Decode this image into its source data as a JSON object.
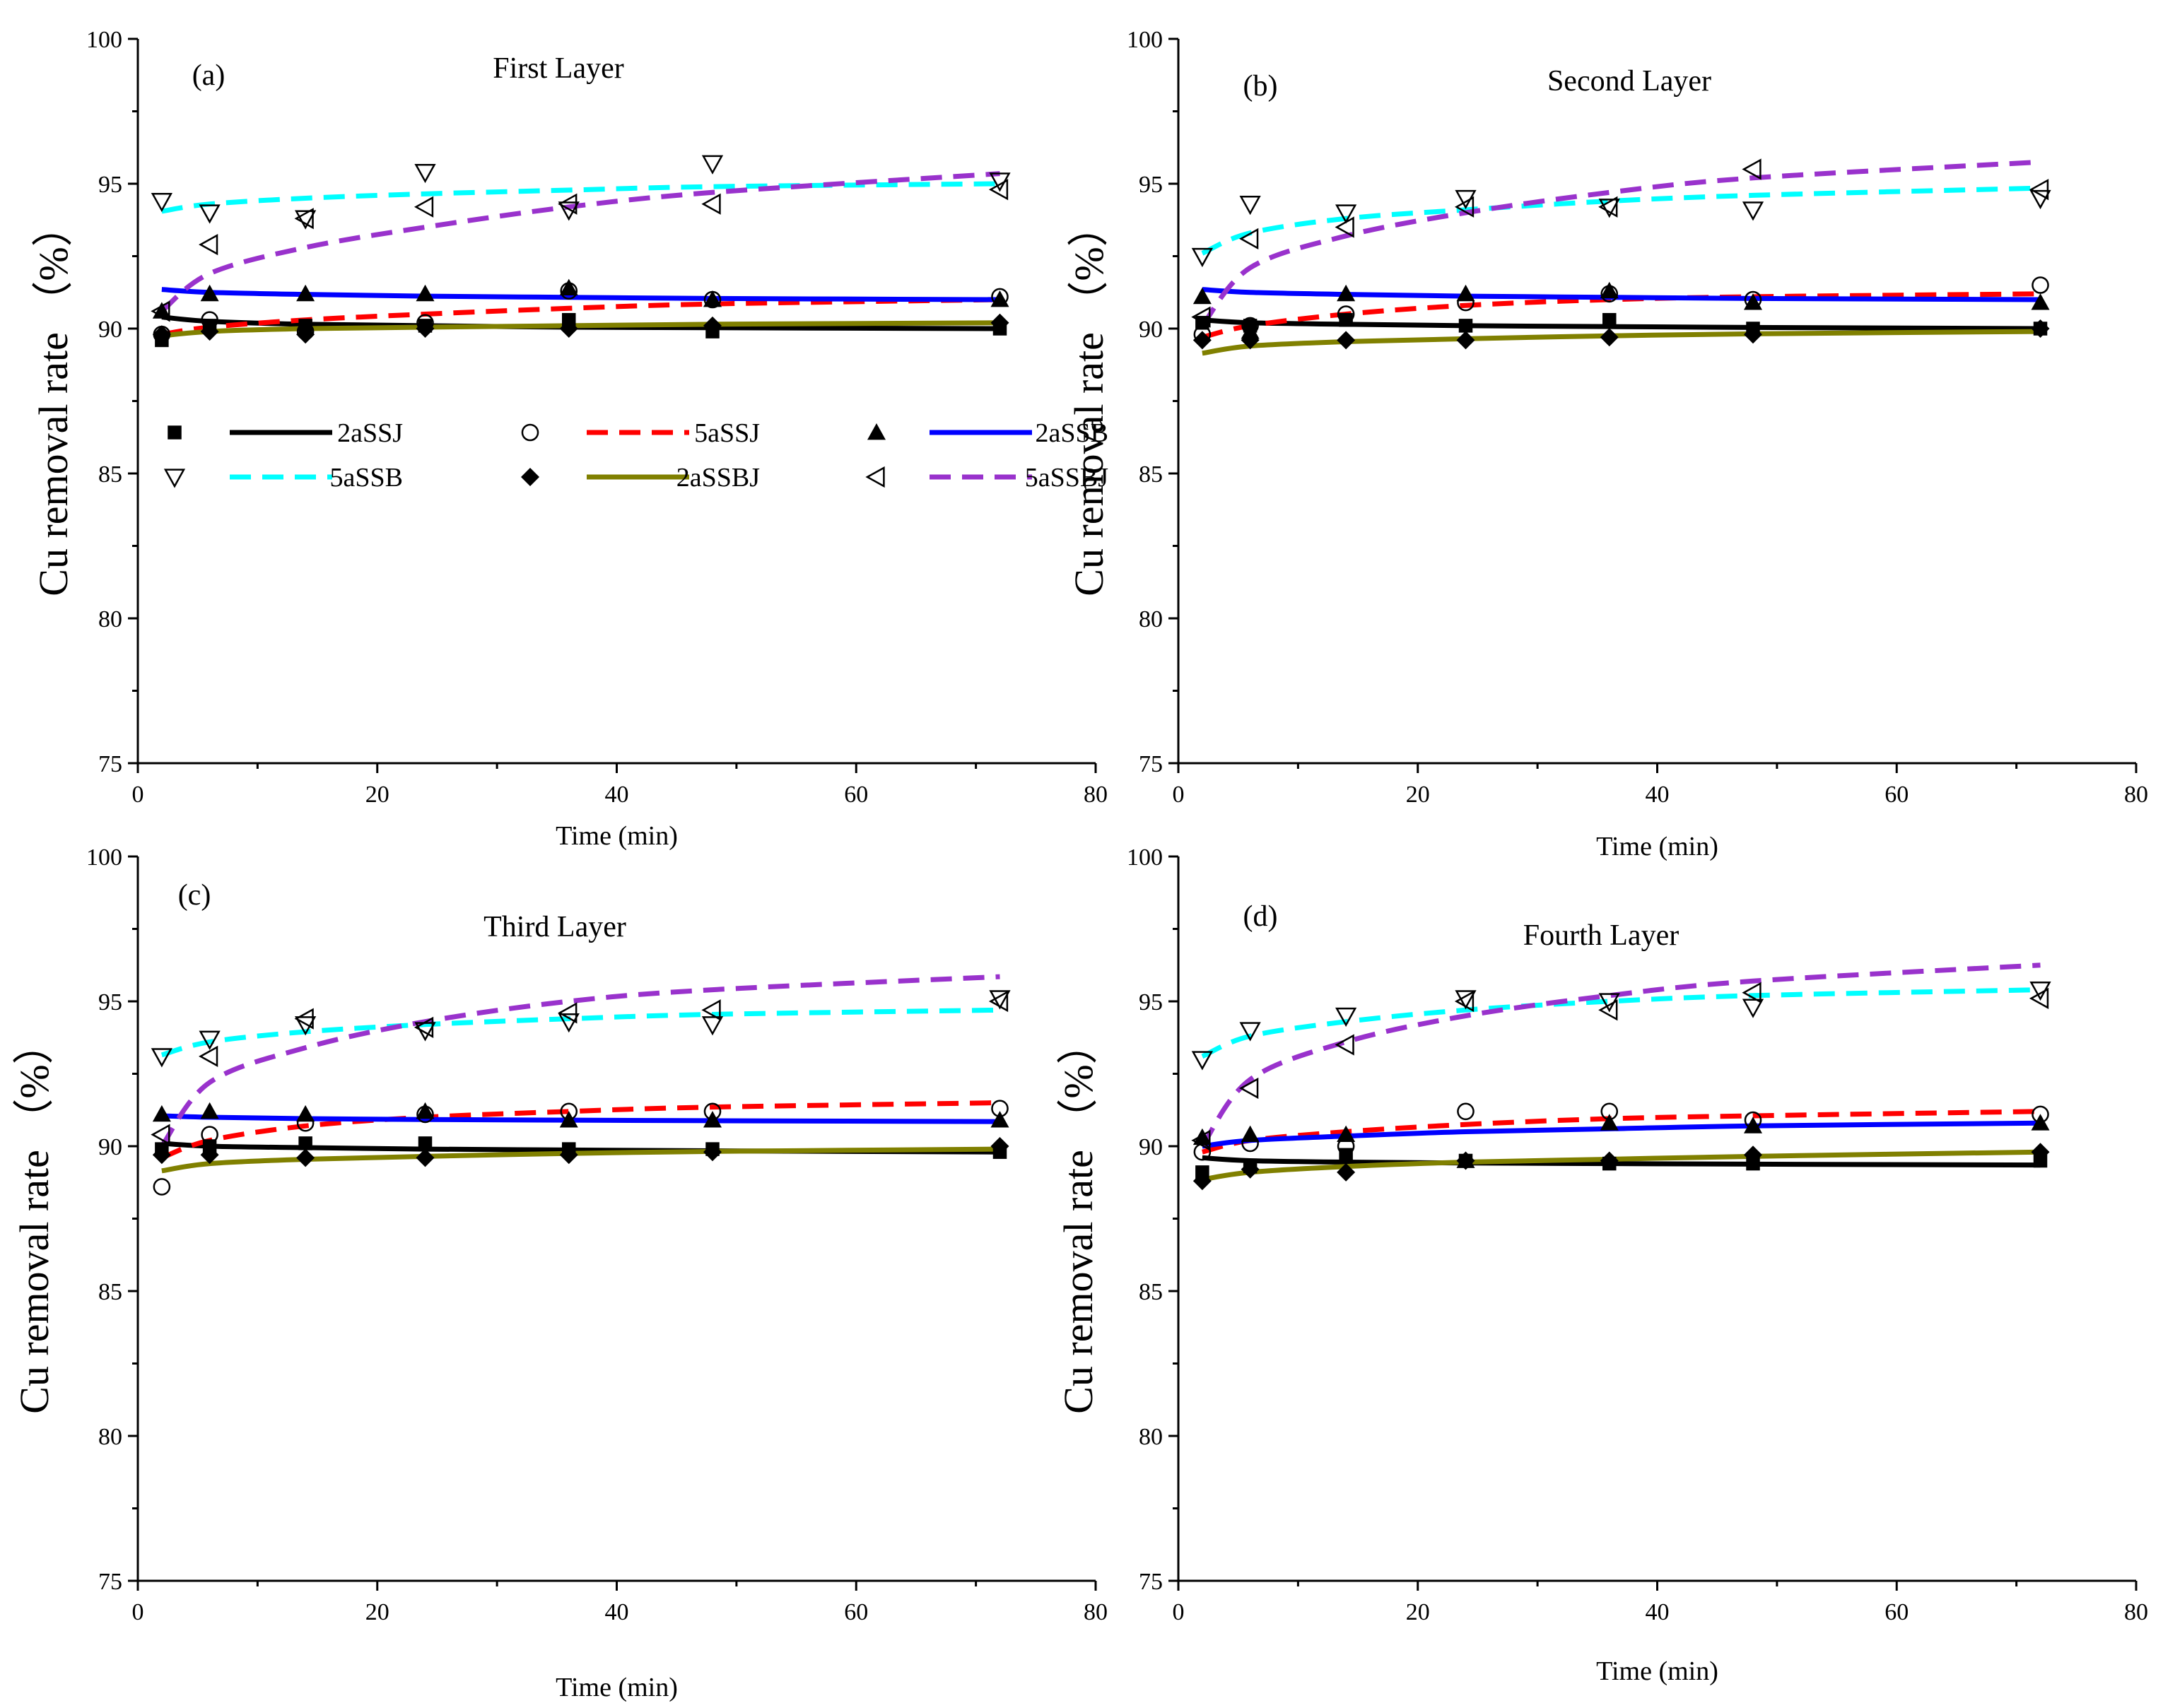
{
  "legend": {
    "entries": [
      {
        "label": "2aSSJ",
        "marker": "square",
        "color": "#000000",
        "dash": "solid"
      },
      {
        "label": "5aSSJ",
        "marker": "circle-open",
        "color": "#ff0000",
        "dash": "dashed"
      },
      {
        "label": "2aSSB",
        "marker": "triangle-up",
        "color": "#0000ff",
        "dash": "solid"
      },
      {
        "label": "5aSSB",
        "marker": "triangle-down-open",
        "color": "#00ffff",
        "dash": "dashed"
      },
      {
        "label": "2aSSBJ",
        "marker": "diamond",
        "color": "#808000",
        "dash": "solid"
      },
      {
        "label": "5aSSBJ",
        "marker": "triangle-left-open",
        "color": "#9932cc",
        "dash": "dashed"
      }
    ]
  },
  "chart_data": [
    {
      "type": "scatter",
      "panel": "(a)",
      "title": "First Layer",
      "xlabel": "Time (min)",
      "ylabel": "Cu removal rate （%）",
      "xlim": [
        0,
        80
      ],
      "ylim": [
        75,
        100
      ],
      "xticks": [
        0,
        20,
        40,
        60,
        80
      ],
      "yticks": [
        75,
        80,
        85,
        90,
        95,
        100
      ],
      "x": [
        2,
        6,
        14,
        24,
        36,
        48,
        72
      ],
      "series": [
        {
          "name": "2aSSJ",
          "values": [
            89.6,
            90.1,
            90.1,
            90.1,
            90.3,
            89.9,
            90.0
          ],
          "fit": [
            90.4,
            90.25,
            90.15,
            90.1,
            90.05,
            90.03,
            90.0
          ]
        },
        {
          "name": "5aSSJ",
          "values": [
            89.8,
            90.3,
            89.9,
            90.2,
            91.3,
            91.0,
            91.1
          ],
          "fit": [
            89.8,
            90.05,
            90.3,
            90.5,
            90.7,
            90.85,
            91.0
          ]
        },
        {
          "name": "2aSSB",
          "values": [
            90.6,
            91.2,
            91.2,
            91.2,
            91.4,
            91.0,
            91.0
          ],
          "fit": [
            91.35,
            91.25,
            91.18,
            91.12,
            91.08,
            91.04,
            91.0
          ]
        },
        {
          "name": "5aSSB",
          "values": [
            94.4,
            94.0,
            93.8,
            95.4,
            94.1,
            95.7,
            95.1
          ],
          "fit": [
            94.05,
            94.3,
            94.5,
            94.65,
            94.78,
            94.9,
            95.0
          ]
        },
        {
          "name": "2aSSBJ",
          "values": [
            89.8,
            89.9,
            89.8,
            90.0,
            90.0,
            90.1,
            90.2
          ],
          "fit": [
            89.75,
            89.9,
            90.0,
            90.05,
            90.1,
            90.15,
            90.2
          ]
        },
        {
          "name": "5aSSBJ",
          "values": [
            90.6,
            92.9,
            93.8,
            94.2,
            94.3,
            94.3,
            94.8
          ],
          "fit": [
            90.6,
            91.9,
            92.8,
            93.5,
            94.2,
            94.7,
            95.35
          ]
        }
      ]
    },
    {
      "type": "scatter",
      "panel": "(b)",
      "title": "Second Layer",
      "xlabel": "Time (min)",
      "ylabel": "Cu removal rate （%）",
      "xlim": [
        0,
        80
      ],
      "ylim": [
        75,
        100
      ],
      "xticks": [
        0,
        20,
        40,
        60,
        80
      ],
      "yticks": [
        75,
        80,
        85,
        90,
        95,
        100
      ],
      "x": [
        2,
        6,
        14,
        24,
        36,
        48,
        72
      ],
      "series": [
        {
          "name": "2aSSJ",
          "values": [
            90.2,
            90.1,
            90.3,
            90.1,
            90.3,
            90.0,
            90.0
          ],
          "fit": [
            90.3,
            90.2,
            90.15,
            90.1,
            90.07,
            90.04,
            90.0
          ]
        },
        {
          "name": "5aSSJ",
          "values": [
            89.8,
            90.1,
            90.5,
            90.9,
            91.2,
            91.0,
            91.5
          ],
          "fit": [
            89.7,
            90.1,
            90.5,
            90.8,
            91.0,
            91.1,
            91.2
          ]
        },
        {
          "name": "2aSSB",
          "values": [
            91.1,
            89.9,
            91.2,
            91.2,
            91.3,
            90.9,
            90.9
          ],
          "fit": [
            91.35,
            91.25,
            91.18,
            91.12,
            91.08,
            91.04,
            91.0
          ]
        },
        {
          "name": "5aSSB",
          "values": [
            92.5,
            94.3,
            94.0,
            94.5,
            94.2,
            94.1,
            94.5
          ],
          "fit": [
            92.6,
            93.3,
            93.8,
            94.1,
            94.4,
            94.6,
            94.85
          ]
        },
        {
          "name": "2aSSBJ",
          "values": [
            89.6,
            89.6,
            89.6,
            89.6,
            89.7,
            89.8,
            90.0
          ],
          "fit": [
            89.15,
            89.4,
            89.55,
            89.65,
            89.75,
            89.82,
            89.9
          ]
        },
        {
          "name": "5aSSBJ",
          "values": [
            90.4,
            93.1,
            93.5,
            94.2,
            94.2,
            95.5,
            94.8
          ],
          "fit": [
            90.1,
            92.1,
            93.2,
            94.0,
            94.7,
            95.2,
            95.75
          ]
        }
      ]
    },
    {
      "type": "scatter",
      "panel": "(c)",
      "title": "Third Layer",
      "xlabel": "Time (min)",
      "ylabel": "Cu removal rate （%）",
      "xlim": [
        0,
        80
      ],
      "ylim": [
        75,
        100
      ],
      "xticks": [
        0,
        20,
        40,
        60,
        80
      ],
      "yticks": [
        75,
        80,
        85,
        90,
        95,
        100
      ],
      "x": [
        2,
        6,
        14,
        24,
        36,
        48,
        72
      ],
      "series": [
        {
          "name": "2aSSJ",
          "values": [
            89.9,
            90.0,
            90.1,
            90.1,
            89.9,
            89.9,
            89.8
          ],
          "fit": [
            90.1,
            90.0,
            89.95,
            89.9,
            89.87,
            89.84,
            89.8
          ]
        },
        {
          "name": "5aSSJ",
          "values": [
            88.6,
            90.4,
            90.8,
            91.1,
            91.2,
            91.2,
            91.3
          ],
          "fit": [
            89.6,
            90.2,
            90.7,
            91.0,
            91.2,
            91.35,
            91.5
          ]
        },
        {
          "name": "2aSSB",
          "values": [
            91.1,
            91.2,
            91.1,
            91.2,
            90.9,
            90.9,
            90.9
          ],
          "fit": [
            91.05,
            91.0,
            90.95,
            90.92,
            90.9,
            90.88,
            90.85
          ]
        },
        {
          "name": "5aSSB",
          "values": [
            93.1,
            93.7,
            94.2,
            94.0,
            94.3,
            94.2,
            95.1
          ],
          "fit": [
            93.15,
            93.6,
            93.95,
            94.2,
            94.4,
            94.55,
            94.7
          ]
        },
        {
          "name": "2aSSBJ",
          "values": [
            89.7,
            89.7,
            89.6,
            89.6,
            89.7,
            89.8,
            90.0
          ],
          "fit": [
            89.15,
            89.4,
            89.55,
            89.65,
            89.75,
            89.82,
            89.9
          ]
        },
        {
          "name": "5aSSBJ",
          "values": [
            90.4,
            93.1,
            94.4,
            94.1,
            94.6,
            94.7,
            95.0
          ],
          "fit": [
            90.0,
            92.2,
            93.4,
            94.3,
            95.0,
            95.4,
            95.85
          ]
        }
      ]
    },
    {
      "type": "scatter",
      "panel": "(d)",
      "title": "Fourth Layer",
      "xlabel": "Time (min)",
      "ylabel": "Cu removal rate （%）",
      "xlim": [
        0,
        80
      ],
      "ylim": [
        75,
        100
      ],
      "xticks": [
        0,
        20,
        40,
        60,
        80
      ],
      "yticks": [
        75,
        80,
        85,
        90,
        95,
        100
      ],
      "x": [
        2,
        6,
        14,
        24,
        36,
        48,
        72
      ],
      "series": [
        {
          "name": "2aSSJ",
          "values": [
            89.1,
            89.3,
            89.7,
            89.5,
            89.4,
            89.4,
            89.5
          ],
          "fit": [
            89.6,
            89.5,
            89.45,
            89.42,
            89.4,
            89.38,
            89.35
          ]
        },
        {
          "name": "5aSSJ",
          "values": [
            89.8,
            90.1,
            90.0,
            91.2,
            91.2,
            90.9,
            91.1
          ],
          "fit": [
            89.8,
            90.2,
            90.5,
            90.75,
            90.95,
            91.05,
            91.2
          ]
        },
        {
          "name": "2aSSB",
          "values": [
            90.3,
            90.4,
            90.4,
            89.5,
            90.8,
            90.7,
            90.8
          ],
          "fit": [
            90.0,
            90.2,
            90.35,
            90.5,
            90.6,
            90.7,
            90.8
          ]
        },
        {
          "name": "5aSSB",
          "values": [
            93.0,
            94.0,
            94.5,
            95.1,
            95.0,
            94.8,
            95.4
          ],
          "fit": [
            93.1,
            93.8,
            94.3,
            94.7,
            95.0,
            95.2,
            95.4
          ]
        },
        {
          "name": "2aSSBJ",
          "values": [
            88.8,
            89.2,
            89.1,
            89.5,
            89.5,
            89.7,
            89.8
          ],
          "fit": [
            88.85,
            89.1,
            89.3,
            89.45,
            89.55,
            89.65,
            89.8
          ]
        },
        {
          "name": "5aSSBJ",
          "values": [
            90.2,
            92.0,
            93.5,
            95.0,
            94.7,
            95.3,
            95.1
          ],
          "fit": [
            90.0,
            92.3,
            93.6,
            94.5,
            95.2,
            95.7,
            96.25
          ]
        }
      ]
    }
  ]
}
